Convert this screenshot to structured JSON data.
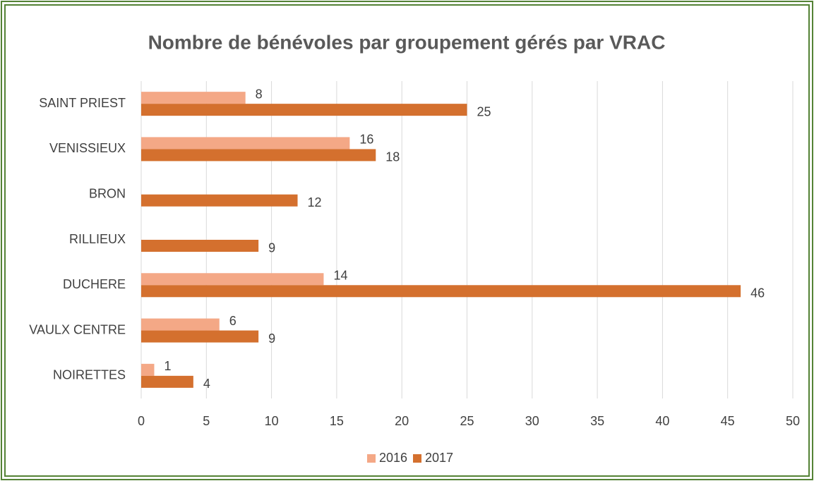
{
  "chart_data": {
    "type": "bar",
    "orientation": "horizontal",
    "title": "Nombre de bénévoles par groupement gérés par VRAC",
    "categories": [
      "SAINT PRIEST",
      "VENISSIEUX",
      "BRON",
      "RILLIEUX",
      "DUCHERE",
      "VAULX CENTRE",
      "NOIRETTES"
    ],
    "series": [
      {
        "name": "2016",
        "color": "#f4a886",
        "values": [
          8,
          16,
          null,
          null,
          14,
          6,
          1
        ]
      },
      {
        "name": "2017",
        "color": "#d4702e",
        "values": [
          25,
          18,
          12,
          9,
          46,
          9,
          4
        ]
      }
    ],
    "xlim": [
      0,
      50
    ],
    "xticks": [
      0,
      5,
      10,
      15,
      20,
      25,
      30,
      35,
      40,
      45,
      50
    ],
    "grid": true,
    "legend": "bottom"
  }
}
